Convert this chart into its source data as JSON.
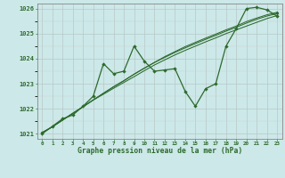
{
  "title": "Graphe pression niveau de la mer (hPa)",
  "background_color": "#cce8e8",
  "grid_color": "#bbcccc",
  "line_color": "#2d6a2d",
  "xlim": [
    -0.5,
    23.5
  ],
  "ylim": [
    1020.8,
    1026.2
  ],
  "xticks": [
    0,
    1,
    2,
    3,
    4,
    5,
    6,
    7,
    8,
    9,
    10,
    11,
    12,
    13,
    14,
    15,
    16,
    17,
    18,
    19,
    20,
    21,
    22,
    23
  ],
  "yticks": [
    1021,
    1022,
    1023,
    1024,
    1025,
    1026
  ],
  "series1": [
    1021.0,
    1021.3,
    1021.6,
    1021.75,
    1022.1,
    1022.5,
    1023.8,
    1023.4,
    1023.5,
    1024.5,
    1023.9,
    1023.5,
    1023.55,
    1023.6,
    1022.7,
    1022.1,
    1022.8,
    1023.0,
    1024.5,
    1025.2,
    1026.0,
    1026.05,
    1025.95,
    1025.7
  ],
  "series2": [
    1021.05,
    1021.28,
    1021.55,
    1021.82,
    1022.08,
    1022.35,
    1022.62,
    1022.88,
    1023.12,
    1023.38,
    1023.62,
    1023.85,
    1024.08,
    1024.28,
    1024.48,
    1024.65,
    1024.82,
    1024.98,
    1025.15,
    1025.3,
    1025.48,
    1025.62,
    1025.75,
    1025.85
  ],
  "series3": [
    1021.05,
    1021.28,
    1021.55,
    1021.82,
    1022.08,
    1022.35,
    1022.62,
    1022.88,
    1023.12,
    1023.38,
    1023.62,
    1023.85,
    1024.05,
    1024.25,
    1024.43,
    1024.6,
    1024.77,
    1024.93,
    1025.1,
    1025.25,
    1025.42,
    1025.57,
    1025.7,
    1025.8
  ],
  "series4": [
    1021.05,
    1021.28,
    1021.55,
    1021.82,
    1022.08,
    1022.35,
    1022.58,
    1022.82,
    1023.05,
    1023.28,
    1023.52,
    1023.75,
    1023.95,
    1024.15,
    1024.33,
    1024.5,
    1024.67,
    1024.83,
    1025.0,
    1025.15,
    1025.3,
    1025.45,
    1025.6,
    1025.72
  ]
}
